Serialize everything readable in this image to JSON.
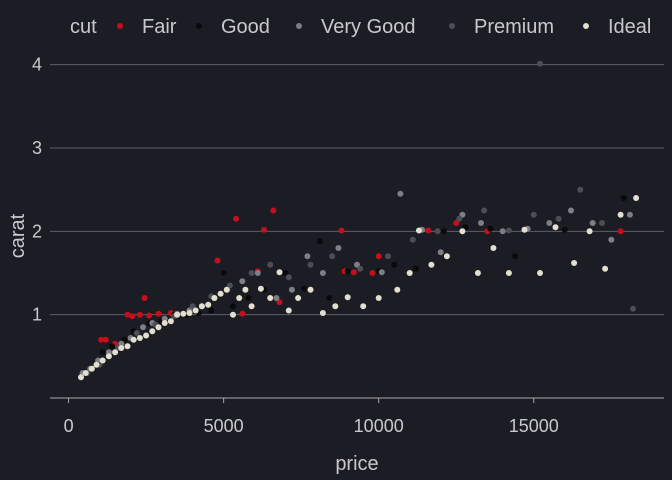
{
  "chart_data": {
    "type": "scatter",
    "title": "",
    "xlabel": "price",
    "ylabel": "carat",
    "xlim": [
      -600,
      19200
    ],
    "ylim": [
      0,
      4.2
    ],
    "xticks": [
      0,
      5000,
      10000,
      15000
    ],
    "xtick_labels": [
      "0",
      "5000",
      "10000",
      "15000"
    ],
    "yticks": [
      1,
      2,
      3,
      4
    ],
    "ytick_labels": [
      "1",
      "2",
      "3",
      "4"
    ],
    "grid": "horizontal major lines",
    "legend": {
      "title": "cut",
      "position": "top",
      "entries": [
        "Fair",
        "Good",
        "Very Good",
        "Premium",
        "Ideal"
      ]
    },
    "colors": {
      "background": "#1b1c24",
      "grid": "#5e5f66",
      "axis": "#a9a9ad",
      "text": "#c9c9cc"
    },
    "series": [
      {
        "name": "Fair",
        "color": "#c4101c",
        "points": [
          [
            1050,
            0.7
          ],
          [
            1200,
            0.7
          ],
          [
            1500,
            0.65
          ],
          [
            1900,
            1.0
          ],
          [
            2050,
            0.98
          ],
          [
            2300,
            1.0
          ],
          [
            2450,
            1.2
          ],
          [
            2600,
            0.99
          ],
          [
            2900,
            1.01
          ],
          [
            3300,
            1.02
          ],
          [
            4800,
            1.65
          ],
          [
            5000,
            1.5
          ],
          [
            5400,
            2.15
          ],
          [
            5600,
            1.01
          ],
          [
            6100,
            1.52
          ],
          [
            6300,
            2.02
          ],
          [
            6600,
            2.25
          ],
          [
            6800,
            1.15
          ],
          [
            8800,
            2.01
          ],
          [
            8900,
            1.52
          ],
          [
            9200,
            1.51
          ],
          [
            9800,
            1.5
          ],
          [
            10000,
            1.7
          ],
          [
            11600,
            2.01
          ],
          [
            12500,
            2.1
          ],
          [
            13500,
            2.0
          ],
          [
            17800,
            2.0
          ]
        ]
      },
      {
        "name": "Good",
        "color": "#0a0a0a",
        "points": [
          [
            500,
            0.3
          ],
          [
            900,
            0.4
          ],
          [
            1100,
            0.55
          ],
          [
            1400,
            0.62
          ],
          [
            1800,
            0.7
          ],
          [
            2100,
            0.8
          ],
          [
            2600,
            0.9
          ],
          [
            3000,
            0.92
          ],
          [
            3400,
            1.0
          ],
          [
            3800,
            1.0
          ],
          [
            4200,
            1.02
          ],
          [
            4600,
            1.05
          ],
          [
            5000,
            1.5
          ],
          [
            5300,
            1.1
          ],
          [
            5800,
            1.2
          ],
          [
            6300,
            1.3
          ],
          [
            7000,
            1.5
          ],
          [
            7600,
            1.31
          ],
          [
            8100,
            1.88
          ],
          [
            8400,
            1.2
          ],
          [
            9000,
            1.52
          ],
          [
            10000,
            1.52
          ],
          [
            10500,
            1.6
          ],
          [
            11200,
            1.55
          ],
          [
            12100,
            2.0
          ],
          [
            12800,
            2.05
          ],
          [
            13600,
            2.03
          ],
          [
            14400,
            1.7
          ],
          [
            16000,
            2.02
          ],
          [
            17900,
            2.4
          ]
        ]
      },
      {
        "name": "Very Good",
        "color": "#7e7f85",
        "points": [
          [
            450,
            0.3
          ],
          [
            700,
            0.35
          ],
          [
            950,
            0.45
          ],
          [
            1300,
            0.55
          ],
          [
            1700,
            0.65
          ],
          [
            2000,
            0.72
          ],
          [
            2400,
            0.85
          ],
          [
            2700,
            0.9
          ],
          [
            3100,
            0.95
          ],
          [
            3500,
            1.01
          ],
          [
            3900,
            1.05
          ],
          [
            4300,
            1.1
          ],
          [
            4700,
            1.2
          ],
          [
            5100,
            1.3
          ],
          [
            5600,
            1.4
          ],
          [
            6100,
            1.5
          ],
          [
            6700,
            1.2
          ],
          [
            7200,
            1.3
          ],
          [
            7700,
            1.7
          ],
          [
            8200,
            1.5
          ],
          [
            8700,
            1.8
          ],
          [
            9300,
            1.6
          ],
          [
            10100,
            1.51
          ],
          [
            10700,
            2.45
          ],
          [
            11400,
            2.02
          ],
          [
            12000,
            1.75
          ],
          [
            12700,
            2.2
          ],
          [
            13300,
            2.1
          ],
          [
            14000,
            2.0
          ],
          [
            14800,
            2.03
          ],
          [
            15500,
            2.1
          ],
          [
            16200,
            2.25
          ],
          [
            16900,
            2.1
          ],
          [
            17500,
            1.9
          ],
          [
            18100,
            2.2
          ]
        ]
      },
      {
        "name": "Premium",
        "color": "#4d4e54",
        "points": [
          [
            600,
            0.3
          ],
          [
            1000,
            0.4
          ],
          [
            1600,
            0.6
          ],
          [
            2200,
            0.78
          ],
          [
            2800,
            0.88
          ],
          [
            3400,
            0.98
          ],
          [
            4000,
            1.1
          ],
          [
            4600,
            1.22
          ],
          [
            5200,
            1.35
          ],
          [
            5900,
            1.5
          ],
          [
            6500,
            1.6
          ],
          [
            7100,
            1.45
          ],
          [
            7800,
            1.6
          ],
          [
            8500,
            1.7
          ],
          [
            9400,
            1.55
          ],
          [
            10300,
            1.7
          ],
          [
            11100,
            1.9
          ],
          [
            11900,
            2.0
          ],
          [
            12600,
            2.15
          ],
          [
            13400,
            2.25
          ],
          [
            14200,
            2.01
          ],
          [
            15000,
            2.2
          ],
          [
            15200,
            4.01
          ],
          [
            15800,
            2.15
          ],
          [
            16500,
            2.5
          ],
          [
            17200,
            2.1
          ],
          [
            18200,
            1.07
          ]
        ]
      },
      {
        "name": "Ideal",
        "color": "#e3dfcf",
        "points": [
          [
            400,
            0.25
          ],
          [
            550,
            0.3
          ],
          [
            750,
            0.35
          ],
          [
            900,
            0.4
          ],
          [
            1100,
            0.45
          ],
          [
            1300,
            0.5
          ],
          [
            1500,
            0.55
          ],
          [
            1700,
            0.6
          ],
          [
            1900,
            0.62
          ],
          [
            2100,
            0.7
          ],
          [
            2300,
            0.72
          ],
          [
            2500,
            0.75
          ],
          [
            2700,
            0.8
          ],
          [
            2900,
            0.85
          ],
          [
            3100,
            0.9
          ],
          [
            3300,
            0.92
          ],
          [
            3500,
            1.0
          ],
          [
            3700,
            1.01
          ],
          [
            3900,
            1.02
          ],
          [
            4100,
            1.05
          ],
          [
            4300,
            1.1
          ],
          [
            4500,
            1.12
          ],
          [
            4700,
            1.2
          ],
          [
            4900,
            1.25
          ],
          [
            5100,
            1.3
          ],
          [
            5300,
            1.0
          ],
          [
            5500,
            1.2
          ],
          [
            5700,
            1.3
          ],
          [
            5900,
            1.1
          ],
          [
            6200,
            1.31
          ],
          [
            6500,
            1.2
          ],
          [
            6800,
            1.51
          ],
          [
            7100,
            1.05
          ],
          [
            7400,
            1.2
          ],
          [
            7800,
            1.3
          ],
          [
            8200,
            1.02
          ],
          [
            8600,
            1.1
          ],
          [
            9000,
            1.21
          ],
          [
            9500,
            1.1
          ],
          [
            10000,
            1.2
          ],
          [
            10600,
            1.3
          ],
          [
            11000,
            1.5
          ],
          [
            11300,
            2.01
          ],
          [
            11700,
            1.6
          ],
          [
            12200,
            1.7
          ],
          [
            12700,
            2.0
          ],
          [
            13200,
            1.5
          ],
          [
            13700,
            1.8
          ],
          [
            14200,
            1.5
          ],
          [
            14700,
            2.02
          ],
          [
            15200,
            1.5
          ],
          [
            15700,
            2.05
          ],
          [
            16300,
            1.62
          ],
          [
            16800,
            2.0
          ],
          [
            17300,
            1.55
          ],
          [
            17800,
            2.2
          ],
          [
            18300,
            2.4
          ]
        ]
      }
    ]
  }
}
